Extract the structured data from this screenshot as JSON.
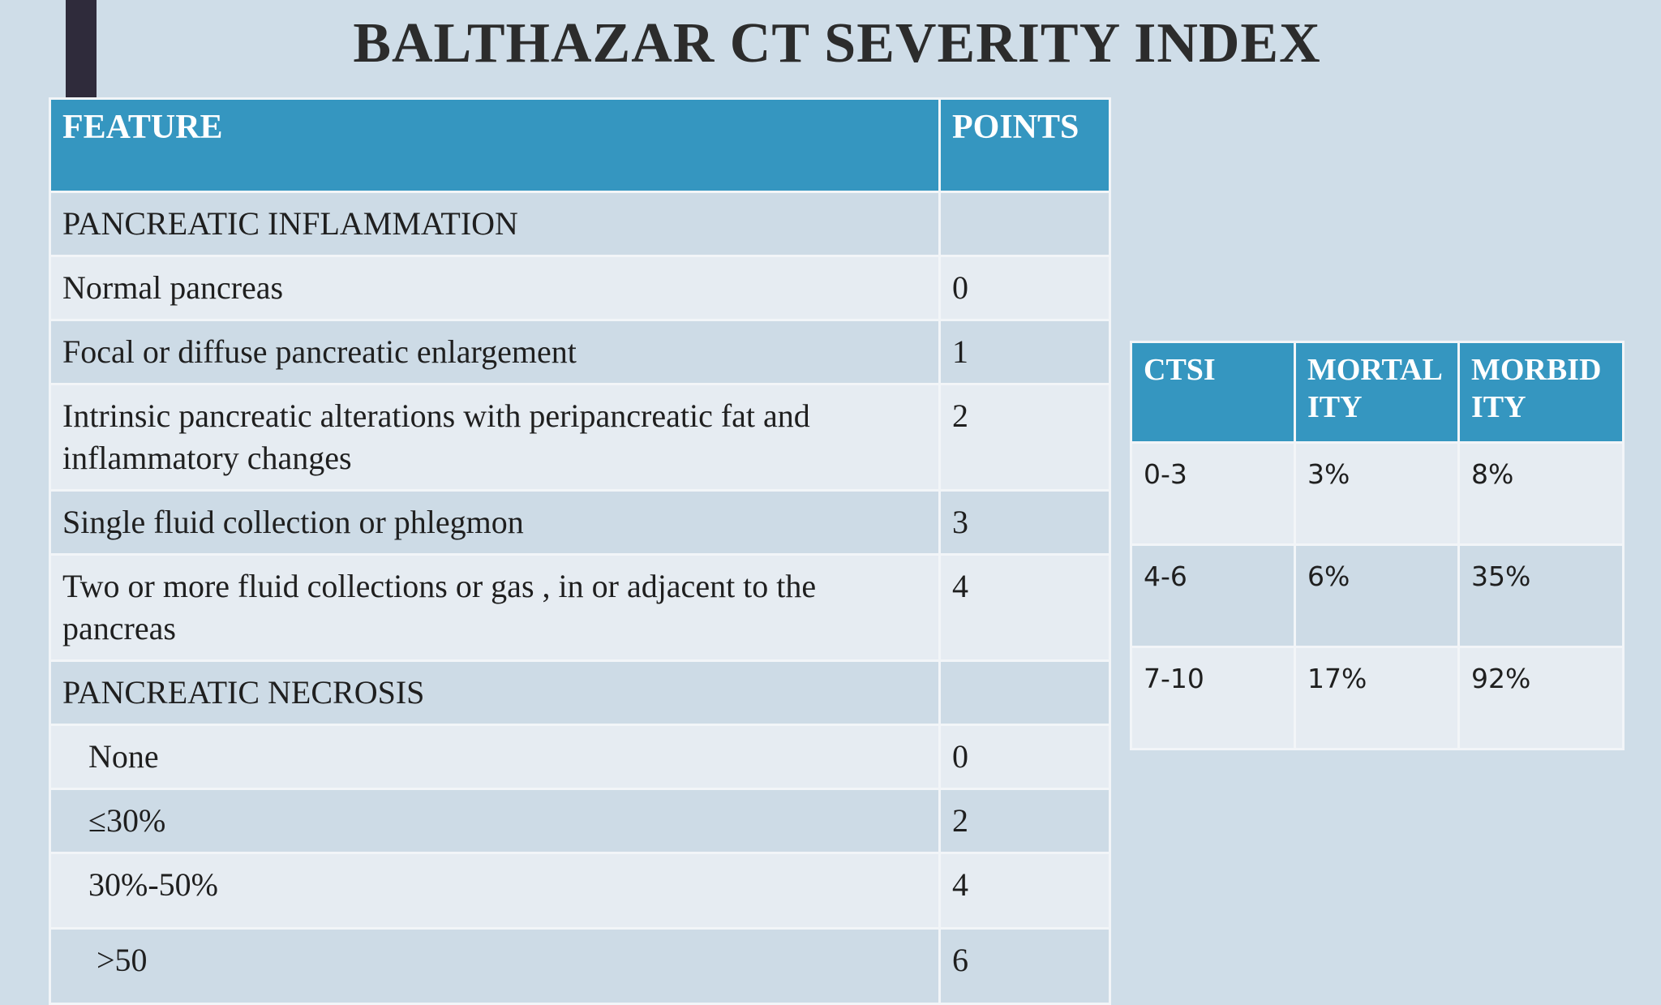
{
  "title": "BALTHAZAR CT SEVERITY INDEX",
  "main_table": {
    "headers": [
      "FEATURE",
      "POINTS"
    ],
    "rows": [
      {
        "feature": "PANCREATIC INFLAMMATION",
        "points": ""
      },
      {
        "feature": "Normal pancreas",
        "points": "0"
      },
      {
        "feature": "Focal or diffuse pancreatic enlargement",
        "points": "1"
      },
      {
        "feature": "Intrinsic pancreatic alterations with peripancreatic fat and inflammatory changes",
        "points": "2"
      },
      {
        "feature": "Single fluid collection or phlegmon",
        "points": "3"
      },
      {
        "feature": "Two or more fluid collections or gas , in or adjacent to the pancreas",
        "points": "4"
      },
      {
        "feature": "PANCREATIC NECROSIS",
        "points": ""
      },
      {
        "feature": "None",
        "points": "0"
      },
      {
        "feature": "≤30%",
        "points": "2"
      },
      {
        "feature": "30%-50%",
        "points": "4"
      },
      {
        "feature": ">50",
        "points": "6"
      }
    ]
  },
  "ctsi_table": {
    "headers": [
      "CTSI",
      "MORTAL ITY",
      "MORBID ITY"
    ],
    "rows": [
      {
        "ctsi": "0-3",
        "mortality": "3%",
        "morbidity": "8%"
      },
      {
        "ctsi": "4-6",
        "mortality": "6%",
        "morbidity": "35%"
      },
      {
        "ctsi": "7-10",
        "mortality": "17%",
        "morbidity": "92%"
      }
    ]
  }
}
